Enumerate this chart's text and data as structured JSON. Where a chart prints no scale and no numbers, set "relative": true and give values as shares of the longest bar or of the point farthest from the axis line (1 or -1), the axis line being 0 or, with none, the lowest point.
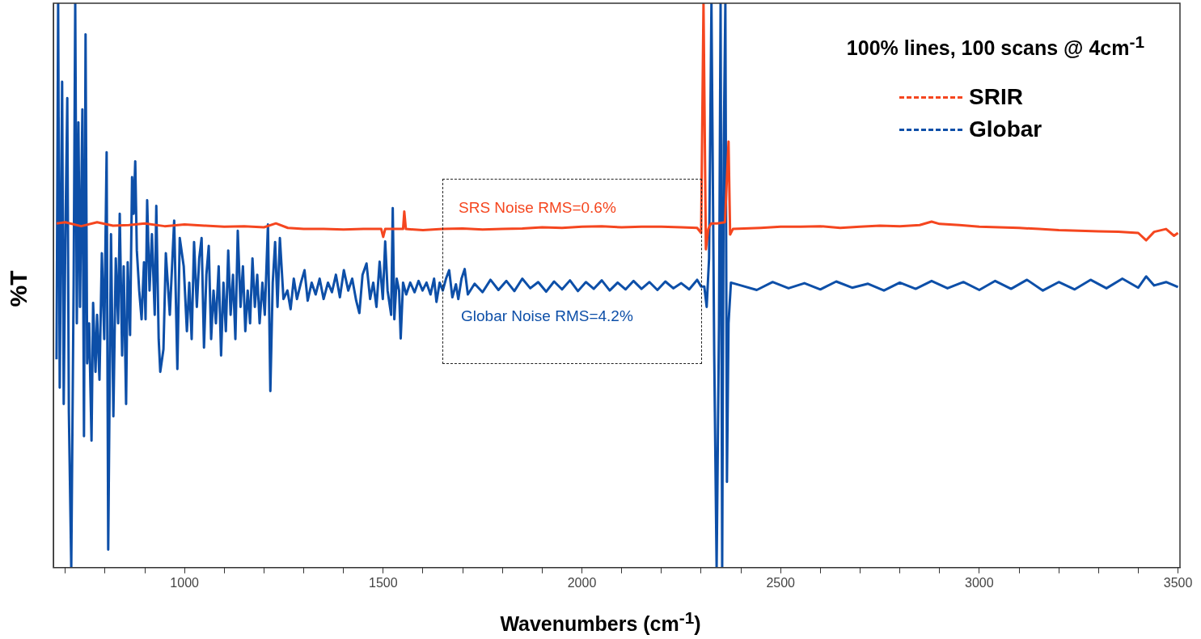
{
  "chart_data": {
    "type": "line",
    "title": "100% lines, 100 scans @ 4cm$^{-1}$",
    "xlabel": "Wavenumbers (cm$^{-1}$)",
    "ylabel": "%T",
    "relative": true,
    "xlim": [
      670,
      3505
    ],
    "xticks": [
      {
        "value": 700,
        "label": null
      },
      {
        "value": 800,
        "label": null
      },
      {
        "value": 900,
        "label": null
      },
      1000,
      {
        "value": 1100,
        "label": null
      },
      {
        "value": 1200,
        "label": null
      },
      {
        "value": 1300,
        "label": null
      },
      {
        "value": 1400,
        "label": null
      },
      1500,
      {
        "value": 1600,
        "label": null
      },
      {
        "value": 1700,
        "label": null
      },
      {
        "value": 1800,
        "label": null
      },
      {
        "value": 1900,
        "label": null
      },
      2000,
      {
        "value": 2100,
        "label": null
      },
      {
        "value": 2200,
        "label": null
      },
      {
        "value": 2300,
        "label": null
      },
      {
        "value": 2400,
        "label": null
      },
      2500,
      {
        "value": 2600,
        "label": null
      },
      {
        "value": 2700,
        "label": null
      },
      {
        "value": 2800,
        "label": null
      },
      {
        "value": 2900,
        "label": null
      },
      3000,
      {
        "value": 3100,
        "label": null
      },
      {
        "value": 3200,
        "label": null
      },
      {
        "value": 3300,
        "label": null
      },
      {
        "value": 3400,
        "label": null
      },
      3500
    ],
    "grid": false,
    "legend": "top right",
    "marker": "none",
    "line_style": "solid",
    "annotations": [
      "SRS Noise RMS=0.6%",
      "Globar Noise RMS=4.2%"
    ],
    "series": [
      {
        "name": "SRIR",
        "color": "#f5461f",
        "x": [
          678,
          700,
          740,
          780,
          820,
          860,
          900,
          950,
          1000,
          1050,
          1100,
          1150,
          1200,
          1230,
          1260,
          1300,
          1350,
          1400,
          1450,
          1495,
          1500,
          1505,
          1550,
          1553,
          1557,
          1600,
          1650,
          1700,
          1750,
          1800,
          1850,
          1900,
          1950,
          2000,
          2050,
          2100,
          2150,
          2200,
          2250,
          2290,
          2300,
          2306,
          2312,
          2318,
          2325,
          2340,
          2360,
          2369,
          2373,
          2380,
          2450,
          2500,
          2550,
          2600,
          2650,
          2700,
          2750,
          2800,
          2850,
          2880,
          2900,
          2950,
          3000,
          3050,
          3100,
          3150,
          3200,
          3250,
          3300,
          3350,
          3400,
          3420,
          3440,
          3470,
          3490,
          3500
        ],
        "values": [
          0.61,
          0.612,
          0.605,
          0.612,
          0.606,
          0.607,
          0.61,
          0.605,
          0.608,
          0.606,
          0.604,
          0.605,
          0.603,
          0.61,
          0.602,
          0.6,
          0.6,
          0.599,
          0.6,
          0.6,
          0.586,
          0.6,
          0.6,
          0.631,
          0.6,
          0.598,
          0.6,
          0.601,
          0.599,
          0.6,
          0.601,
          0.603,
          0.602,
          0.604,
          0.605,
          0.603,
          0.604,
          0.604,
          0.603,
          0.602,
          0.593,
          1.0,
          0.564,
          0.6,
          0.61,
          0.61,
          0.612,
          0.755,
          0.59,
          0.6,
          0.602,
          0.604,
          0.604,
          0.605,
          0.602,
          0.604,
          0.606,
          0.605,
          0.607,
          0.613,
          0.609,
          0.607,
          0.604,
          0.603,
          0.602,
          0.6,
          0.598,
          0.597,
          0.596,
          0.595,
          0.593,
          0.58,
          0.595,
          0.6,
          0.588,
          0.593
        ]
      },
      {
        "name": "Globar",
        "color": "#0d4fa8",
        "x": [
          678,
          682,
          686,
          692,
          696,
          700,
          705,
          709,
          715,
          721,
          725,
          729,
          733,
          737,
          743,
          747,
          751,
          755,
          760,
          766,
          770,
          776,
          780,
          786,
          792,
          798,
          804,
          808,
          815,
          821,
          827,
          833,
          837,
          843,
          847,
          853,
          857,
          863,
          868,
          872,
          876,
          880,
          886,
          892,
          898,
          902,
          906,
          912,
          918,
          925,
          929,
          935,
          939,
          947,
          953,
          963,
          974,
          982,
          988,
          998,
          1006,
          1012,
          1018,
          1024,
          1031,
          1037,
          1043,
          1049,
          1055,
          1061,
          1067,
          1073,
          1079,
          1086,
          1092,
          1098,
          1104,
          1110,
          1116,
          1122,
          1128,
          1134,
          1141,
          1147,
          1153,
          1159,
          1165,
          1171,
          1177,
          1183,
          1189,
          1196,
          1202,
          1210,
          1216,
          1222,
          1228,
          1234,
          1240,
          1249,
          1259,
          1267,
          1275,
          1283,
          1293,
          1302,
          1310,
          1320,
          1330,
          1340,
          1350,
          1361,
          1371,
          1381,
          1391,
          1401,
          1412,
          1422,
          1432,
          1440,
          1448,
          1458,
          1467,
          1475,
          1483,
          1491,
          1499,
          1505,
          1511,
          1520,
          1524,
          1528,
          1534,
          1540,
          1544,
          1550,
          1558,
          1568,
          1579,
          1589,
          1599,
          1609,
          1619,
          1628,
          1634,
          1642,
          1650,
          1658,
          1666,
          1674,
          1683,
          1689,
          1697,
          1705,
          1713,
          1730,
          1750,
          1770,
          1790,
          1810,
          1830,
          1850,
          1870,
          1890,
          1910,
          1930,
          1950,
          1970,
          1990,
          2010,
          2030,
          2050,
          2070,
          2090,
          2110,
          2130,
          2150,
          2170,
          2190,
          2210,
          2230,
          2250,
          2270,
          2290,
          2300,
          2308,
          2314,
          2320,
          2326,
          2333,
          2339,
          2345,
          2349,
          2353,
          2357,
          2361,
          2365,
          2369,
          2375,
          2400,
          2440,
          2480,
          2520,
          2560,
          2600,
          2640,
          2680,
          2720,
          2760,
          2800,
          2840,
          2880,
          2920,
          2960,
          3000,
          3040,
          3080,
          3120,
          3160,
          3200,
          3240,
          3280,
          3320,
          3360,
          3400,
          3420,
          3440,
          3470,
          3500
        ],
        "values": [
          0.369,
          1.0,
          0.319,
          0.861,
          0.29,
          0.577,
          0.832,
          0.275,
          0.0,
          0.505,
          1.0,
          0.433,
          0.789,
          0.462,
          0.812,
          0.233,
          0.945,
          0.362,
          0.433,
          0.225,
          0.469,
          0.347,
          0.448,
          0.333,
          0.557,
          0.405,
          0.736,
          0.032,
          0.591,
          0.268,
          0.548,
          0.433,
          0.627,
          0.376,
          0.534,
          0.29,
          0.541,
          0.412,
          0.692,
          0.627,
          0.72,
          0.562,
          0.491,
          0.44,
          0.541,
          0.44,
          0.651,
          0.491,
          0.591,
          0.448,
          0.641,
          0.405,
          0.347,
          0.387,
          0.557,
          0.448,
          0.615,
          0.352,
          0.584,
          0.534,
          0.419,
          0.505,
          0.405,
          0.577,
          0.462,
          0.548,
          0.584,
          0.39,
          0.519,
          0.57,
          0.405,
          0.491,
          0.433,
          0.534,
          0.376,
          0.505,
          0.419,
          0.562,
          0.448,
          0.519,
          0.405,
          0.597,
          0.462,
          0.534,
          0.419,
          0.491,
          0.433,
          0.548,
          0.462,
          0.519,
          0.433,
          0.505,
          0.448,
          0.608,
          0.313,
          0.505,
          0.577,
          0.462,
          0.584,
          0.476,
          0.491,
          0.458,
          0.512,
          0.476,
          0.505,
          0.527,
          0.473,
          0.505,
          0.484,
          0.512,
          0.476,
          0.505,
          0.488,
          0.519,
          0.479,
          0.527,
          0.491,
          0.512,
          0.473,
          0.451,
          0.519,
          0.539,
          0.476,
          0.505,
          0.462,
          0.542,
          0.476,
          0.578,
          0.491,
          0.448,
          0.637,
          0.44,
          0.512,
          0.491,
          0.406,
          0.505,
          0.484,
          0.505,
          0.488,
          0.508,
          0.491,
          0.505,
          0.484,
          0.512,
          0.471,
          0.505,
          0.491,
          0.512,
          0.527,
          0.479,
          0.502,
          0.476,
          0.512,
          0.529,
          0.484,
          0.503,
          0.488,
          0.51,
          0.492,
          0.508,
          0.49,
          0.512,
          0.495,
          0.506,
          0.489,
          0.507,
          0.493,
          0.509,
          0.49,
          0.506,
          0.494,
          0.509,
          0.491,
          0.505,
          0.493,
          0.508,
          0.494,
          0.506,
          0.492,
          0.507,
          0.495,
          0.504,
          0.493,
          0.51,
          0.498,
          0.498,
          0.462,
          0.548,
          1.0,
          0.376,
          0.0,
          0.433,
          1.0,
          0.0,
          0.749,
          1.0,
          0.152,
          0.433,
          0.505,
          0.5,
          0.492,
          0.506,
          0.495,
          0.504,
          0.493,
          0.507,
          0.496,
          0.503,
          0.491,
          0.505,
          0.494,
          0.508,
          0.495,
          0.506,
          0.492,
          0.508,
          0.494,
          0.51,
          0.491,
          0.506,
          0.493,
          0.51,
          0.495,
          0.512,
          0.496,
          0.516,
          0.5,
          0.506,
          0.497
        ]
      }
    ]
  }
}
